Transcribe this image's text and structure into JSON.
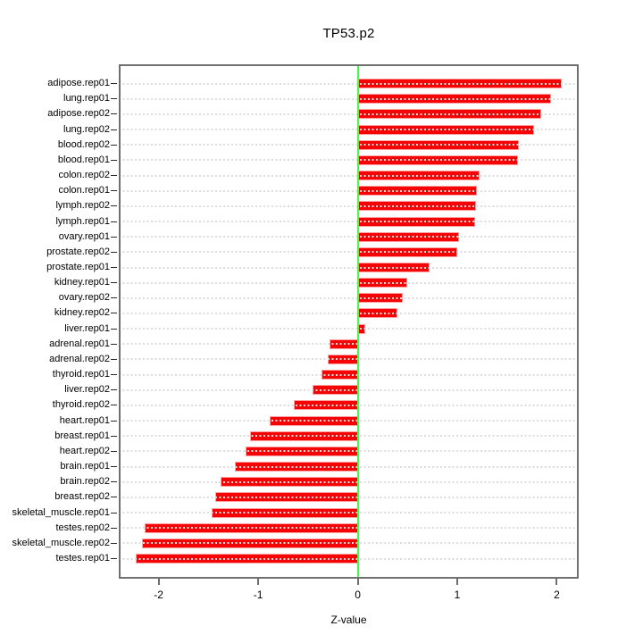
{
  "chart_data": {
    "type": "bar",
    "orientation": "horizontal",
    "title": "TP53.p2",
    "xlabel": "Z-value",
    "ylabel": "",
    "categories": [
      "adipose.rep01",
      "lung.rep01",
      "adipose.rep02",
      "lung.rep02",
      "blood.rep02",
      "blood.rep01",
      "colon.rep02",
      "colon.rep01",
      "lymph.rep02",
      "lymph.rep01",
      "ovary.rep01",
      "prostate.rep02",
      "prostate.rep01",
      "kidney.rep01",
      "ovary.rep02",
      "kidney.rep02",
      "liver.rep01",
      "adrenal.rep01",
      "adrenal.rep02",
      "thyroid.rep01",
      "liver.rep02",
      "thyroid.rep02",
      "heart.rep01",
      "breast.rep01",
      "heart.rep02",
      "brain.rep01",
      "brain.rep02",
      "breast.rep02",
      "skeletal_muscle.rep01",
      "testes.rep02",
      "skeletal_muscle.rep02",
      "testes.rep01"
    ],
    "values": [
      2.05,
      1.94,
      1.84,
      1.77,
      1.62,
      1.61,
      1.22,
      1.2,
      1.19,
      1.18,
      1.02,
      1.0,
      0.72,
      0.5,
      0.45,
      0.4,
      0.08,
      -0.28,
      -0.3,
      -0.36,
      -0.45,
      -0.64,
      -0.88,
      -1.08,
      -1.13,
      -1.23,
      -1.38,
      -1.43,
      -1.47,
      -2.14,
      -2.17,
      -2.23
    ],
    "x_ticks": [
      -2,
      -1,
      0,
      1,
      2
    ],
    "x_tick_labels": [
      "-2",
      "-1",
      "0",
      "1",
      "2"
    ],
    "xlim": [
      -2.4,
      2.22
    ],
    "grid": "dotted horizontal line per category, drawn over bars",
    "legend": "none",
    "zero_reference_line": 0,
    "colors": {
      "bar": "#F40404",
      "bar_edge": "#FF9F9F",
      "bar_inner_dots": "#DCDCDC",
      "zero_line": "#46FB46",
      "gridline": "#DCDCDC",
      "axis_box": "#6F6F6F",
      "text": "#000000",
      "background": "#FFFFFF"
    }
  }
}
